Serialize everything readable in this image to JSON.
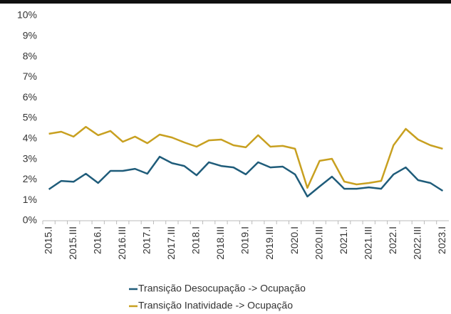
{
  "chart_data": {
    "type": "line",
    "categories": [
      "2015.I",
      null,
      "2015.III",
      null,
      "2016.I",
      null,
      "2016.III",
      null,
      "2017.I",
      null,
      "2017.III",
      null,
      "2018.I",
      null,
      "2018.III",
      null,
      "2019.I",
      null,
      "2019.III",
      null,
      "2020.I",
      null,
      "2020.III",
      null,
      "2021.I",
      null,
      "2021.III",
      null,
      "2022.I",
      null,
      "2022.III",
      null,
      "2023.I"
    ],
    "series": [
      {
        "name": "Transição Desocupação -> Ocupação",
        "color": "#1f5c7a",
        "values": [
          1.53,
          1.94,
          1.9,
          2.29,
          1.84,
          2.43,
          2.43,
          2.53,
          2.29,
          3.12,
          2.81,
          2.67,
          2.22,
          2.85,
          2.67,
          2.6,
          2.26,
          2.85,
          2.6,
          2.64,
          2.26,
          1.18,
          1.67,
          2.15,
          1.56,
          1.56,
          1.63,
          1.56,
          2.26,
          2.6,
          1.98,
          1.84,
          1.46
        ]
      },
      {
        "name": "Transição Inatividade -> Ocupação",
        "color": "#c8a020",
        "values": [
          4.24,
          4.34,
          4.1,
          4.58,
          4.17,
          4.38,
          3.85,
          4.1,
          3.78,
          4.2,
          4.06,
          3.82,
          3.61,
          3.92,
          3.96,
          3.68,
          3.58,
          4.17,
          3.61,
          3.65,
          3.51,
          1.6,
          2.92,
          3.02,
          1.91,
          1.77,
          1.84,
          1.94,
          3.68,
          4.48,
          3.96,
          3.68,
          3.51
        ]
      }
    ],
    "ylim": [
      0,
      10
    ],
    "yticks": [
      {
        "value": 0,
        "label": "0%"
      },
      {
        "value": 1,
        "label": "1%"
      },
      {
        "value": 2,
        "label": "2%"
      },
      {
        "value": 3,
        "label": "3%"
      },
      {
        "value": 4,
        "label": "4%"
      },
      {
        "value": 5,
        "label": "5%"
      },
      {
        "value": 6,
        "label": "6%"
      },
      {
        "value": 7,
        "label": "7%"
      },
      {
        "value": 8,
        "label": "8%"
      },
      {
        "value": 9,
        "label": "9%"
      },
      {
        "value": 10,
        "label": "10%"
      }
    ],
    "grid": false
  }
}
